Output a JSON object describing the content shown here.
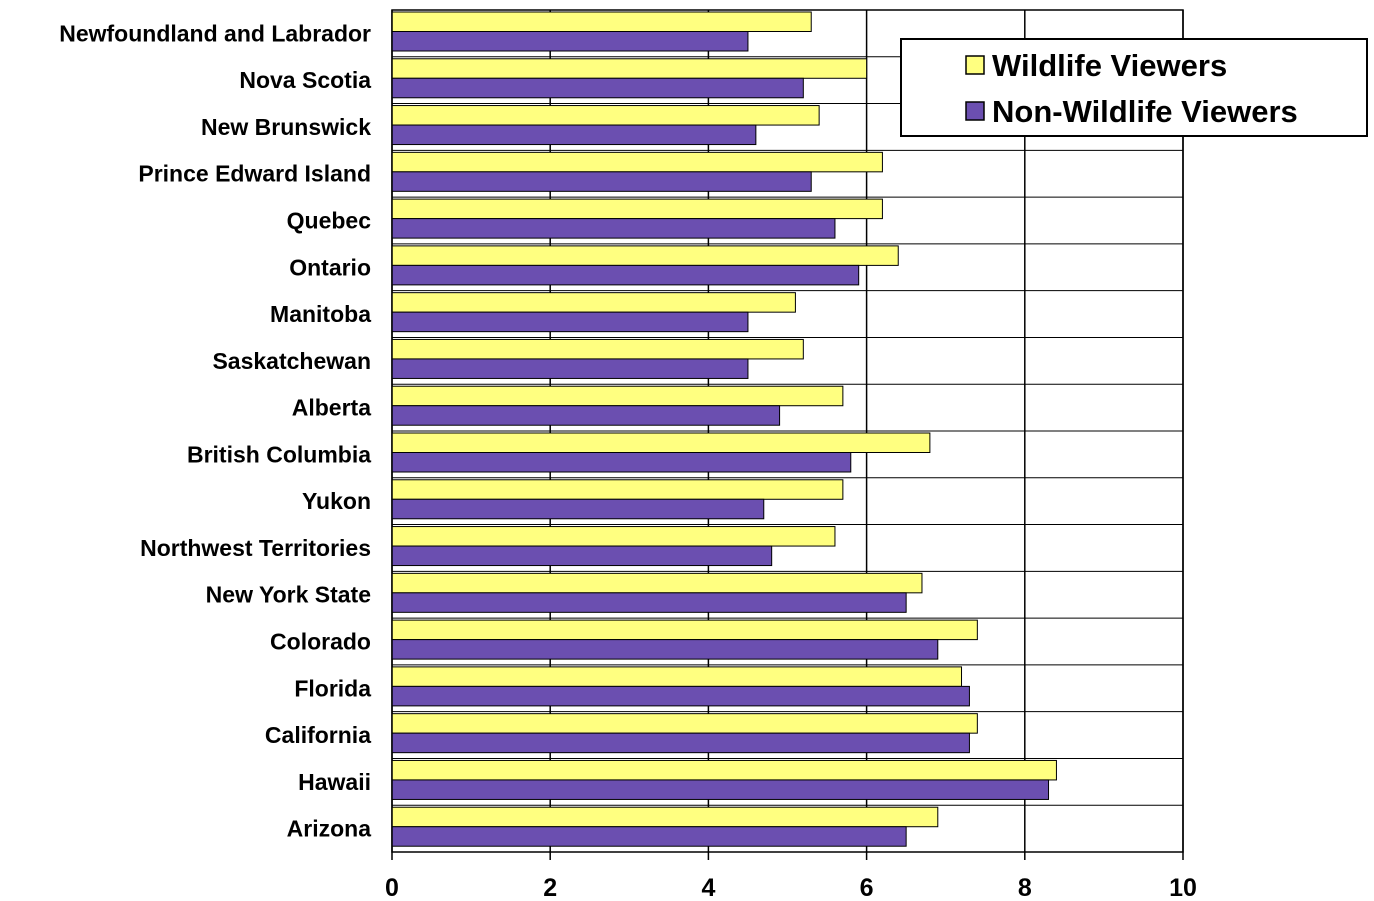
{
  "chart_data": {
    "type": "bar",
    "orientation": "horizontal",
    "categories": [
      "Newfoundland and Labrador",
      "Nova Scotia",
      "New Brunswick",
      "Prince Edward Island",
      "Quebec",
      "Ontario",
      "Manitoba",
      "Saskatchewan",
      "Alberta",
      "British Columbia",
      "Yukon",
      "Northwest Territories",
      "New York State",
      "Colorado",
      "Florida",
      "California",
      "Hawaii",
      "Arizona"
    ],
    "series": [
      {
        "name": "Wildlife Viewers",
        "color": "#ffff80",
        "values": [
          5.3,
          6.0,
          5.4,
          6.2,
          6.2,
          6.4,
          5.1,
          5.2,
          5.7,
          6.8,
          5.7,
          5.6,
          6.7,
          7.4,
          7.2,
          7.4,
          8.4,
          6.9
        ]
      },
      {
        "name": "Non-Wildlife Viewers",
        "color": "#6b4fb0",
        "values": [
          4.5,
          5.2,
          4.6,
          5.3,
          5.6,
          5.9,
          4.5,
          4.5,
          4.9,
          5.8,
          4.7,
          4.8,
          6.5,
          6.9,
          7.3,
          7.3,
          8.3,
          6.5
        ]
      }
    ],
    "xlim": [
      0,
      10
    ],
    "xticks": [
      "0",
      "2",
      "4",
      "6",
      "8",
      "10"
    ],
    "grid": true,
    "legend_position": "top-right"
  }
}
